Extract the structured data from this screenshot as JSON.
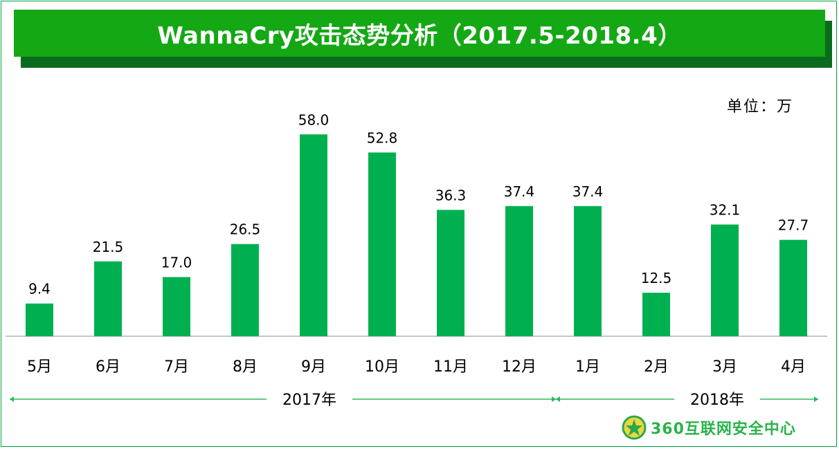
{
  "title": "WannaCry攻击态势分析（2017.5-2018.4）",
  "unit_label": "单位：万",
  "brand": "360互联网安全中心",
  "colors": {
    "bar": "#00b050",
    "title_bg": "#14a814",
    "arrow": "#2db85a"
  },
  "chart_data": {
    "type": "bar",
    "categories": [
      "5月",
      "6月",
      "7月",
      "8月",
      "9月",
      "10月",
      "11月",
      "12月",
      "1月",
      "2月",
      "3月",
      "4月"
    ],
    "values": [
      9.4,
      21.5,
      17.0,
      26.5,
      58.0,
      52.8,
      36.3,
      37.4,
      37.4,
      12.5,
      32.1,
      27.7
    ],
    "value_labels": [
      "9.4",
      "21.5",
      "17.0",
      "26.5",
      "58.0",
      "52.8",
      "36.3",
      "37.4",
      "37.4",
      "12.5",
      "32.1",
      "27.7"
    ],
    "ylim": [
      0,
      60
    ],
    "year_groups": [
      {
        "label": "2017年",
        "from_index": 0,
        "to_index": 7
      },
      {
        "label": "2018年",
        "from_index": 8,
        "to_index": 11
      }
    ]
  }
}
